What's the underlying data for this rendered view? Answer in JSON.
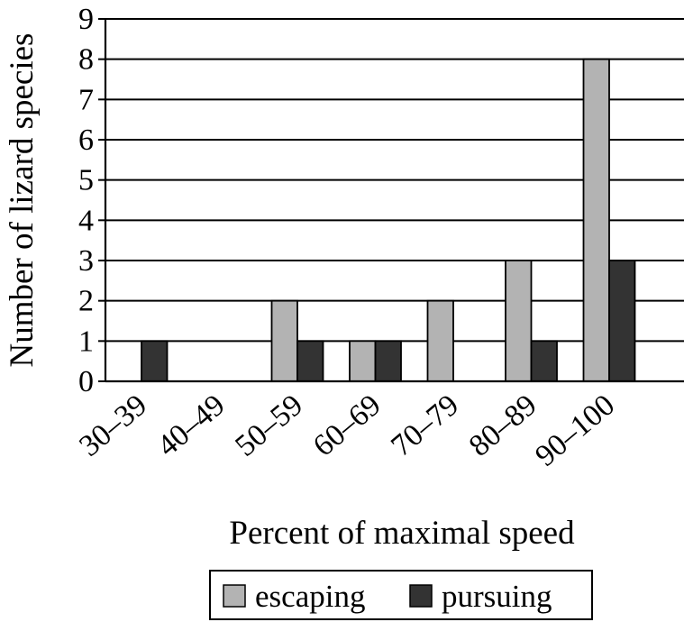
{
  "chart_data": {
    "type": "bar",
    "title": "",
    "xlabel": "Percent of maximal speed",
    "ylabel": "Number of lizard species",
    "categories": [
      "30–39",
      "40–49",
      "50–59",
      "60–69",
      "70–79",
      "80–89",
      "90–100"
    ],
    "series": [
      {
        "name": "escaping",
        "values": [
          0,
          0,
          2,
          1,
          2,
          3,
          8
        ],
        "color": "#b3b3b3"
      },
      {
        "name": "pursuing",
        "values": [
          1,
          0,
          1,
          1,
          0,
          1,
          3
        ],
        "color": "#333333"
      }
    ],
    "ylim": [
      0,
      9
    ],
    "yticks": [
      0,
      1,
      2,
      3,
      4,
      5,
      6,
      7,
      8,
      9
    ],
    "grid": true,
    "legend_position": "bottom"
  }
}
